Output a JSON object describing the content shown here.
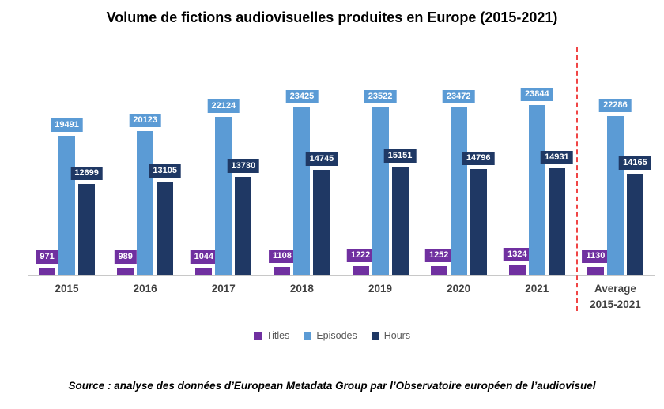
{
  "title": "Volume de fictions audiovisuelles produites en Europe (2015-2021)",
  "source": "Source : analyse des données d’European Metadata Group par l’Observatoire européen de l’audiovisuel",
  "colors": {
    "titles": "#7030A0",
    "episodes": "#5B9BD5",
    "hours": "#1F3864",
    "separator": "#F04545",
    "axis_label": "#404040",
    "legend_text": "#595959"
  },
  "legend": [
    {
      "label": "Titles",
      "color": "#7030A0"
    },
    {
      "label": "Episodes",
      "color": "#5B9BD5"
    },
    {
      "label": "Hours",
      "color": "#1F3864"
    }
  ],
  "chart_data": {
    "type": "bar",
    "title": "Volume de fictions audiovisuelles produites en Europe (2015-2021)",
    "categories": [
      "2015",
      "2016",
      "2017",
      "2018",
      "2019",
      "2020",
      "2021",
      "Average 2015-2021"
    ],
    "series": [
      {
        "name": "Titles",
        "color": "#7030A0",
        "values": [
          971,
          989,
          1044,
          1108,
          1222,
          1252,
          1324,
          1130
        ]
      },
      {
        "name": "Episodes",
        "color": "#5B9BD5",
        "values": [
          19491,
          20123,
          22124,
          23425,
          23522,
          23472,
          23844,
          22286
        ]
      },
      {
        "name": "Hours",
        "color": "#1F3864",
        "values": [
          12699,
          13105,
          13730,
          14745,
          15151,
          14796,
          14931,
          14165
        ]
      }
    ],
    "xlabel": "",
    "ylabel": "",
    "ylim": [
      0,
      31000
    ],
    "grid": false,
    "data_labels": true,
    "legend_position": "bottom",
    "separator_before_category": "Average 2015-2021"
  }
}
